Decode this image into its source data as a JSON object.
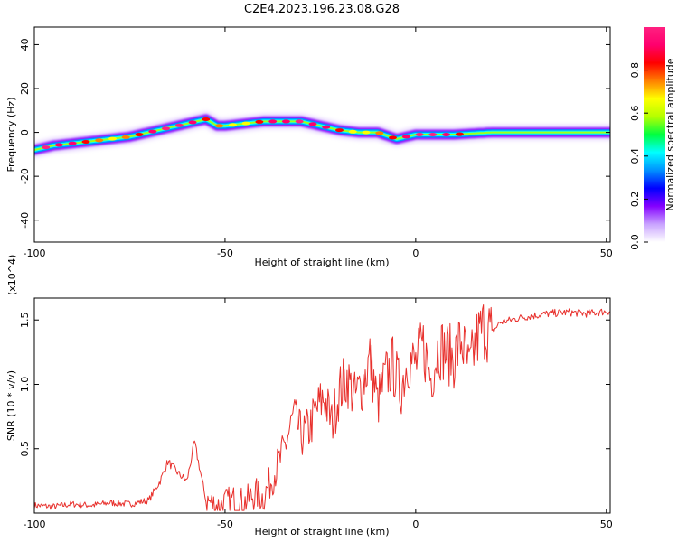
{
  "title": "C2E4.2023.196.23.08.G28",
  "chart_data": [
    {
      "type": "heatmap",
      "xlabel": "Height of straight line (km)",
      "ylabel": "Frequency (Hz)",
      "xlim": [
        -100,
        51
      ],
      "ylim": [
        -50,
        48
      ],
      "xticks": [
        -100,
        -50,
        0,
        50
      ],
      "yticks": [
        -40,
        -20,
        0,
        20,
        40
      ],
      "ridge": {
        "x": [
          -100,
          -95,
          -90,
          -85,
          -80,
          -75,
          -70,
          -65,
          -60,
          -55,
          -52,
          -50,
          -45,
          -40,
          -35,
          -30,
          -25,
          -20,
          -15,
          -10,
          -5,
          0,
          5,
          10,
          20,
          30,
          40,
          51
        ],
        "frequency": [
          -8,
          -6,
          -5,
          -4,
          -3,
          -2,
          0,
          2,
          4,
          6,
          3,
          3,
          4,
          5,
          5,
          5,
          3,
          1,
          0,
          0,
          -3,
          -1,
          -1,
          -1,
          0,
          0,
          0,
          0
        ]
      },
      "colorbar": {
        "label": "Normalized spectral amplitude",
        "range": [
          0,
          1
        ],
        "ticks": [
          "0.0",
          "0.2",
          "0.4",
          "0.6",
          "0.8"
        ],
        "colors": [
          "#ffffff",
          "#c9a3ff",
          "#8400ff",
          "#0000ff",
          "#0090ff",
          "#00ffff",
          "#00ff40",
          "#b4ff00",
          "#ffff00",
          "#ff8000",
          "#ff0000",
          "#ff006e",
          "#ff2080"
        ]
      }
    },
    {
      "type": "line",
      "xlabel": "Height of straight line (km)",
      "ylabel": "SNR (10 * v/v)",
      "yscale_label": "(x10^4)",
      "xlim": [
        -100,
        51
      ],
      "ylim": [
        0,
        1.67
      ],
      "xticks": [
        -100,
        -50,
        0,
        50
      ],
      "yticks": [
        "0.5",
        "1.0",
        "1.5"
      ],
      "line_color": "#e8302c",
      "x": [
        -100,
        -95,
        -90,
        -85,
        -80,
        -75,
        -70,
        -67,
        -65,
        -62,
        -60,
        -58,
        -55,
        -52,
        -50,
        -48,
        -45,
        -42,
        -40,
        -38,
        -35,
        -32,
        -30,
        -28,
        -26,
        -24,
        -22,
        -20,
        -18,
        -16,
        -14,
        -12,
        -10,
        -8,
        -6,
        -4,
        -2,
        0,
        2,
        4,
        6,
        8,
        10,
        12,
        14,
        16,
        18,
        20,
        22,
        25,
        28,
        30,
        35,
        40,
        45,
        51
      ],
      "y": [
        0.06,
        0.05,
        0.07,
        0.06,
        0.08,
        0.07,
        0.1,
        0.25,
        0.4,
        0.3,
        0.25,
        0.55,
        0.1,
        0.05,
        0.08,
        0.1,
        0.08,
        0.15,
        0.12,
        0.25,
        0.45,
        0.75,
        0.6,
        0.65,
        0.8,
        0.9,
        0.7,
        0.95,
        1.05,
        0.9,
        1.0,
        1.2,
        0.85,
        1.05,
        1.15,
        0.95,
        1.2,
        1.15,
        1.3,
        1.05,
        1.3,
        1.25,
        1.2,
        1.35,
        1.1,
        1.35,
        1.45,
        1.4,
        1.48,
        1.5,
        1.52,
        1.53,
        1.55,
        1.56,
        1.55,
        1.57
      ]
    }
  ]
}
